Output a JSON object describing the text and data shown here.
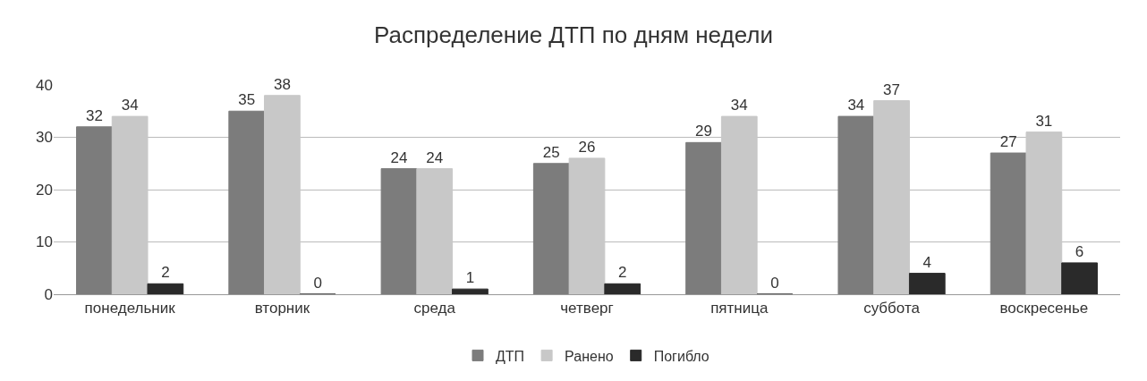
{
  "chart_data": {
    "type": "bar",
    "title": "Распределение ДТП по дням недели",
    "categories": [
      "понедельник",
      "вторник",
      "среда",
      "четверг",
      "пятница",
      "суббота",
      "воскресенье"
    ],
    "series": [
      {
        "name": "ДТП",
        "color": "#7c7c7c",
        "values": [
          32,
          35,
          24,
          25,
          29,
          34,
          27
        ]
      },
      {
        "name": "Ранено",
        "color": "#c8c8c8",
        "values": [
          34,
          38,
          24,
          26,
          34,
          37,
          31
        ]
      },
      {
        "name": "Погибло",
        "color": "#2a2a2a",
        "values": [
          2,
          0,
          1,
          2,
          0,
          4,
          6
        ]
      }
    ],
    "ylim": [
      0,
      40
    ],
    "yticks": [
      0,
      10,
      20,
      30,
      40
    ],
    "grid": "y",
    "legend": "bottom",
    "data_labels": true
  }
}
